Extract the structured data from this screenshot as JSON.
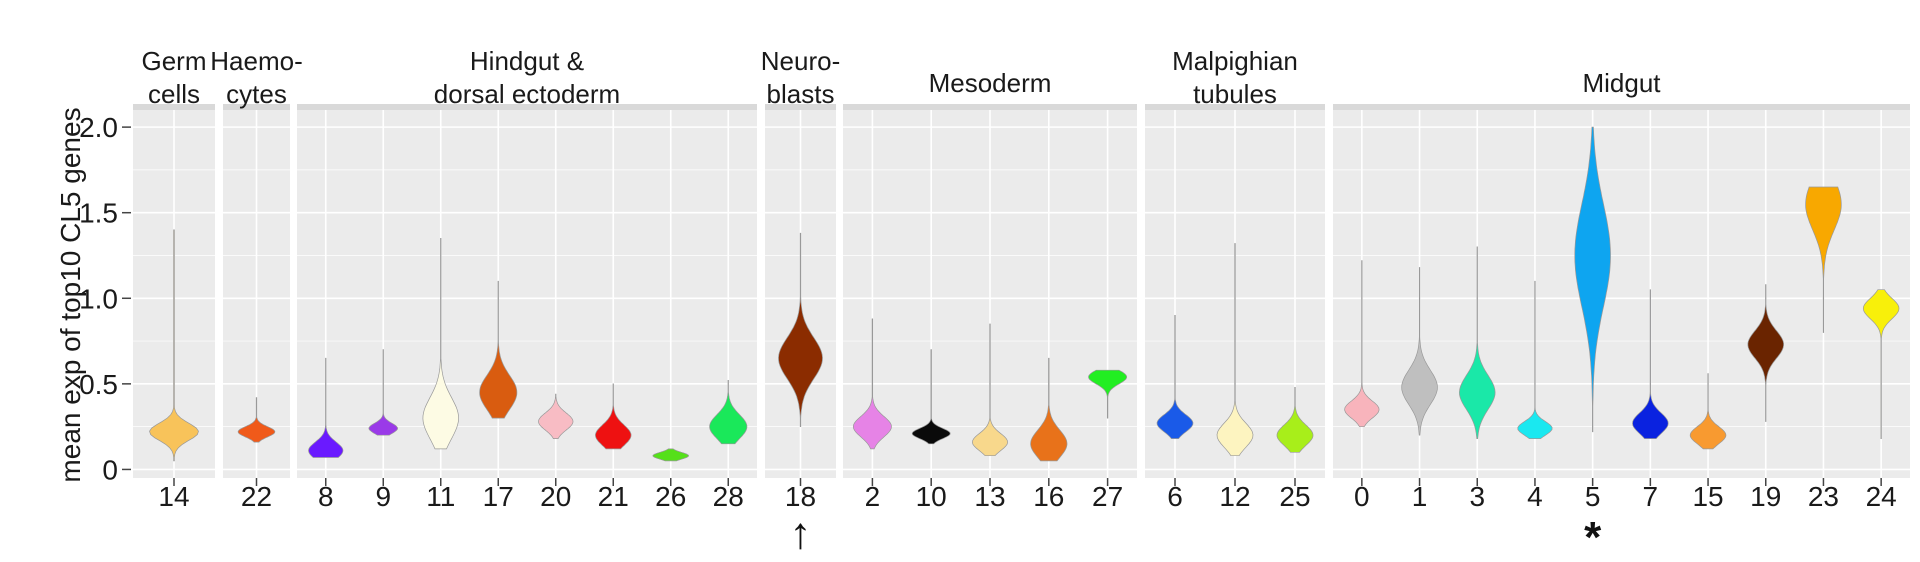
{
  "chart_data": {
    "type": "violin",
    "ylabel": "mean exp of top10 CL5 genes",
    "ylim": [
      -0.05,
      2.1
    ],
    "yticks": [
      0,
      0.5,
      1.0,
      1.5,
      2.0
    ],
    "ytick_labels": [
      "0",
      "0.5",
      "1.0",
      "1.5",
      "2.0"
    ],
    "grid": true,
    "panels": [
      {
        "title_lines": [
          "Germ",
          "cells"
        ],
        "clusters": [
          {
            "label": "14",
            "color": "#f8c35a",
            "min": 0.05,
            "max": 1.4,
            "median": 0.22,
            "spread": 0.05,
            "width": 0.6
          }
        ]
      },
      {
        "title_lines": [
          "Haemo-",
          "cytes"
        ],
        "clusters": [
          {
            "label": "22",
            "color": "#f05a1a",
            "min": 0.16,
            "max": 0.42,
            "median": 0.22,
            "spread": 0.03,
            "width": 0.55
          }
        ]
      },
      {
        "title_lines": [
          "Hindgut &",
          "dorsal ectoderm"
        ],
        "clusters": [
          {
            "label": "8",
            "color": "#6a1aff",
            "min": 0.07,
            "max": 0.65,
            "median": 0.11,
            "spread": 0.05,
            "width": 0.6
          },
          {
            "label": "9",
            "color": "#9a3ae8",
            "min": 0.2,
            "max": 0.7,
            "median": 0.24,
            "spread": 0.03,
            "width": 0.5
          },
          {
            "label": "11",
            "color": "#fdfbe4",
            "min": 0.12,
            "max": 1.35,
            "median": 0.3,
            "spread": 0.12,
            "width": 0.62
          },
          {
            "label": "17",
            "color": "#d95c10",
            "min": 0.3,
            "max": 1.1,
            "median": 0.45,
            "spread": 0.1,
            "width": 0.65
          },
          {
            "label": "20",
            "color": "#f8bcc4",
            "min": 0.18,
            "max": 0.44,
            "median": 0.28,
            "spread": 0.05,
            "width": 0.6
          },
          {
            "label": "21",
            "color": "#ee1111",
            "min": 0.12,
            "max": 0.5,
            "median": 0.2,
            "spread": 0.06,
            "width": 0.62
          },
          {
            "label": "26",
            "color": "#55e01a",
            "min": 0.05,
            "max": 0.12,
            "median": 0.08,
            "spread": 0.02,
            "width": 0.62
          },
          {
            "label": "28",
            "color": "#1ae85a",
            "min": 0.15,
            "max": 0.52,
            "median": 0.25,
            "spread": 0.07,
            "width": 0.65
          }
        ]
      },
      {
        "title_lines": [
          "Neuro-",
          "blasts"
        ],
        "clusters": [
          {
            "label": "18",
            "color": "#8b2c00",
            "min": 0.25,
            "max": 1.38,
            "median": 0.65,
            "spread": 0.12,
            "width": 0.62
          }
        ]
      },
      {
        "title_lines": [
          "Mesoderm"
        ],
        "clusters": [
          {
            "label": "2",
            "color": "#e683e6",
            "min": 0.12,
            "max": 0.88,
            "median": 0.25,
            "spread": 0.06,
            "width": 0.65
          },
          {
            "label": "10",
            "color": "#0a0a0a",
            "min": 0.15,
            "max": 0.7,
            "median": 0.21,
            "spread": 0.03,
            "width": 0.65
          },
          {
            "label": "13",
            "color": "#f8d88c",
            "min": 0.08,
            "max": 0.85,
            "median": 0.16,
            "spread": 0.05,
            "width": 0.6
          },
          {
            "label": "16",
            "color": "#e8721a",
            "min": 0.05,
            "max": 0.65,
            "median": 0.15,
            "spread": 0.08,
            "width": 0.62
          },
          {
            "label": "27",
            "color": "#22ee22",
            "min": 0.3,
            "max": 0.58,
            "median": 0.54,
            "spread": 0.04,
            "width": 0.65
          }
        ]
      },
      {
        "title_lines": [
          "Malpighian",
          "tubules"
        ],
        "clusters": [
          {
            "label": "6",
            "color": "#1a5ae8",
            "min": 0.18,
            "max": 0.9,
            "median": 0.27,
            "spread": 0.05,
            "width": 0.6
          },
          {
            "label": "12",
            "color": "#fdf4c0",
            "min": 0.08,
            "max": 1.32,
            "median": 0.2,
            "spread": 0.07,
            "width": 0.6
          },
          {
            "label": "25",
            "color": "#a8ee1a",
            "min": 0.1,
            "max": 0.48,
            "median": 0.2,
            "spread": 0.06,
            "width": 0.6
          }
        ]
      },
      {
        "title_lines": [
          "Midgut"
        ],
        "clusters": [
          {
            "label": "0",
            "color": "#f8b4bc",
            "min": 0.25,
            "max": 1.22,
            "median": 0.35,
            "spread": 0.05,
            "width": 0.6
          },
          {
            "label": "1",
            "color": "#bfbfbf",
            "min": 0.2,
            "max": 1.18,
            "median": 0.48,
            "spread": 0.1,
            "width": 0.62
          },
          {
            "label": "3",
            "color": "#1ae8a8",
            "min": 0.18,
            "max": 1.3,
            "median": 0.45,
            "spread": 0.1,
            "width": 0.62
          },
          {
            "label": "4",
            "color": "#1ae8f0",
            "min": 0.18,
            "max": 1.1,
            "median": 0.24,
            "spread": 0.04,
            "width": 0.6
          },
          {
            "label": "5",
            "color": "#0ea5f0",
            "min": 0.22,
            "max": 2.0,
            "median": 1.25,
            "spread": 0.3,
            "width": 0.62
          },
          {
            "label": "7",
            "color": "#0a22e0",
            "min": 0.18,
            "max": 1.05,
            "median": 0.27,
            "spread": 0.06,
            "width": 0.62
          },
          {
            "label": "15",
            "color": "#f89a30",
            "min": 0.12,
            "max": 0.56,
            "median": 0.2,
            "spread": 0.05,
            "width": 0.62
          },
          {
            "label": "19",
            "color": "#6a2400",
            "min": 0.28,
            "max": 1.08,
            "median": 0.73,
            "spread": 0.08,
            "width": 0.62
          },
          {
            "label": "23",
            "color": "#f8a800",
            "min": 0.8,
            "max": 1.65,
            "median": 1.55,
            "spread": 0.15,
            "width": 0.62
          },
          {
            "label": "24",
            "color": "#f8f00a",
            "min": 0.18,
            "max": 1.05,
            "median": 0.94,
            "spread": 0.06,
            "width": 0.62
          }
        ]
      }
    ],
    "annotations": [
      {
        "cluster": "18",
        "text": "↑"
      },
      {
        "cluster": "5",
        "text": "*"
      }
    ]
  }
}
